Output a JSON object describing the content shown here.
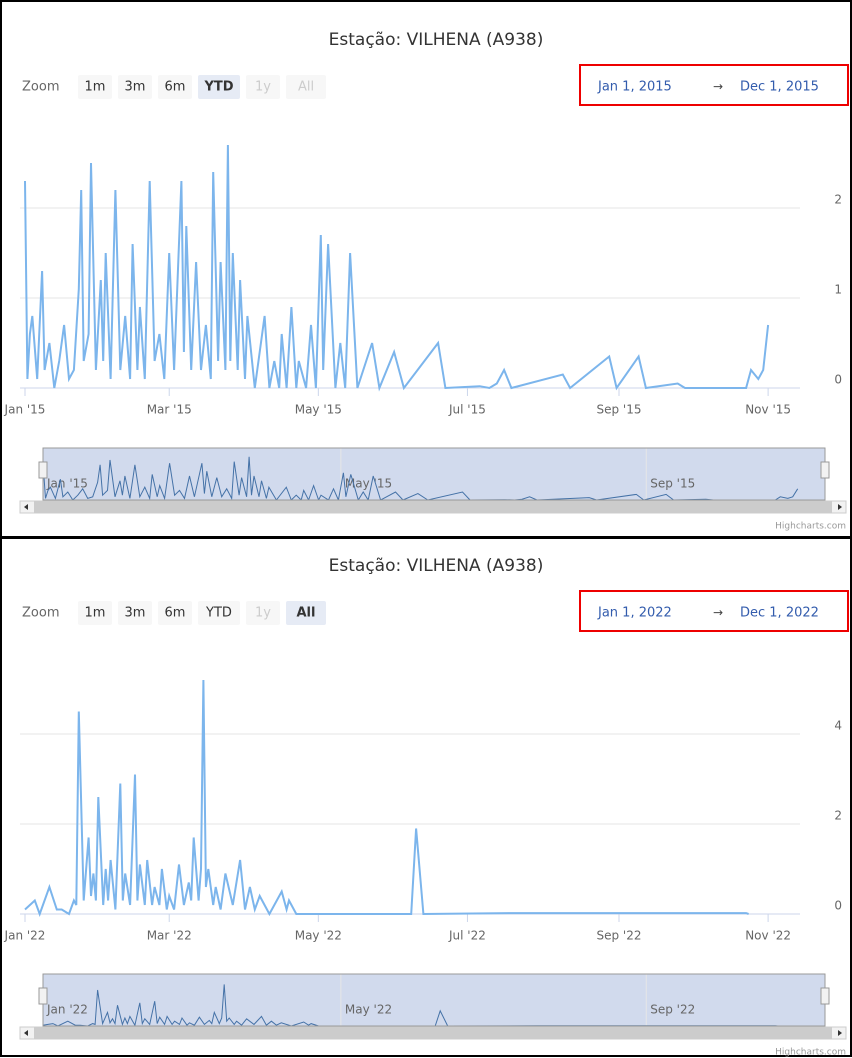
{
  "chart_data": [
    {
      "type": "line",
      "title": "Estação: VILHENA (A938)",
      "zoom_label": "Zoom",
      "buttons": [
        {
          "label": "1m",
          "state": "normal"
        },
        {
          "label": "3m",
          "state": "normal"
        },
        {
          "label": "6m",
          "state": "normal"
        },
        {
          "label": "YTD",
          "state": "selected"
        },
        {
          "label": "1y",
          "state": "disabled"
        },
        {
          "label": "All",
          "state": "disabled"
        }
      ],
      "range_from": "Jan 1, 2015",
      "range_separator": "→",
      "range_to": "Dec 1, 2015",
      "color": "#7cb5ec",
      "x": [
        0,
        1,
        2,
        3,
        5,
        7,
        8,
        10,
        12,
        14,
        16,
        18,
        20,
        22,
        23,
        24,
        26,
        27,
        29,
        31,
        32,
        33,
        35,
        37,
        39,
        41,
        43,
        44,
        46,
        47,
        49,
        51,
        53,
        55,
        57,
        59,
        61,
        64,
        65,
        66,
        68,
        70,
        72,
        74,
        76,
        77,
        79,
        80,
        82,
        83,
        84,
        85,
        87,
        88,
        90,
        91,
        94,
        98,
        100,
        102,
        104,
        105,
        107,
        109,
        111,
        112,
        115,
        117,
        119,
        121,
        122,
        124,
        127,
        129,
        131,
        133,
        136,
        142,
        145,
        151,
        155,
        169,
        172,
        186,
        190,
        193,
        196,
        199,
        220,
        223,
        239,
        242,
        251,
        254,
        267,
        270,
        295,
        297,
        300,
        302,
        304
      ],
      "values": [
        2.3,
        0.1,
        0.6,
        0.8,
        0.1,
        1.3,
        0.2,
        0.5,
        0,
        0.3,
        0.7,
        0.1,
        0.2,
        1.1,
        2.2,
        0.3,
        0.6,
        2.5,
        0.2,
        1.2,
        0.3,
        1.5,
        0.1,
        2.2,
        0.2,
        0.8,
        0.1,
        1.6,
        0.2,
        0.9,
        0.1,
        2.3,
        0.3,
        0.6,
        0.1,
        1.5,
        0.2,
        2.3,
        0.4,
        1.8,
        0.2,
        1.4,
        0.2,
        0.7,
        0.1,
        2.4,
        0.3,
        1.4,
        0.2,
        2.7,
        0.3,
        1.5,
        0.2,
        1.2,
        0.1,
        0.8,
        0,
        0.8,
        0,
        0.3,
        0,
        0.6,
        0,
        0.9,
        0,
        0.3,
        0,
        0.7,
        0,
        1.7,
        0.2,
        1.6,
        0,
        0.5,
        0,
        1.5,
        0,
        0.5,
        0,
        0.4,
        0,
        0.5,
        0,
        0.02,
        0,
        0.05,
        0.2,
        0,
        0.15,
        0,
        0.35,
        0,
        0.35,
        0,
        0.05,
        0,
        0,
        0.2,
        0.1,
        0.2,
        0.7
      ],
      "xlim": [
        0,
        315
      ],
      "xticks": [
        {
          "value": 0,
          "label": "Jan '15"
        },
        {
          "value": 59,
          "label": "Mar '15"
        },
        {
          "value": 120,
          "label": "May '15"
        },
        {
          "value": 181,
          "label": "Jul '15"
        },
        {
          "value": 243,
          "label": "Sep '15"
        },
        {
          "value": 304,
          "label": "Nov '15"
        }
      ],
      "ylim": [
        0,
        3
      ],
      "yticks": [
        0,
        1,
        2
      ],
      "grid": true,
      "navigator_ticks": [
        {
          "value": 0,
          "label": "Jan '15"
        },
        {
          "value": 120,
          "label": "May '15"
        },
        {
          "value": 243,
          "label": "Sep '15"
        }
      ],
      "credits": "Highcharts.com"
    },
    {
      "type": "line",
      "title": "Estação: VILHENA (A938)",
      "zoom_label": "Zoom",
      "buttons": [
        {
          "label": "1m",
          "state": "normal"
        },
        {
          "label": "3m",
          "state": "normal"
        },
        {
          "label": "6m",
          "state": "normal"
        },
        {
          "label": "YTD",
          "state": "normal"
        },
        {
          "label": "1y",
          "state": "disabled"
        },
        {
          "label": "All",
          "state": "selected"
        }
      ],
      "range_from": "Jan 1, 2022",
      "range_separator": "→",
      "range_to": "Dec 1, 2022",
      "color": "#7cb5ec",
      "x": [
        0,
        2,
        4,
        6,
        10,
        13,
        15,
        18,
        20,
        21,
        22,
        24,
        26,
        27,
        28,
        29,
        30,
        32,
        33,
        34,
        35,
        37,
        39,
        40,
        41,
        43,
        45,
        46,
        47,
        49,
        50,
        52,
        53,
        55,
        56,
        58,
        59,
        61,
        63,
        65,
        67,
        68,
        69,
        71,
        72,
        73,
        74,
        75,
        77,
        78,
        80,
        82,
        85,
        88,
        90,
        92,
        94,
        96,
        100,
        105,
        107,
        108,
        111,
        120,
        158,
        160,
        163,
        200,
        250,
        295,
        296
      ],
      "values": [
        0.1,
        0.2,
        0.3,
        0,
        0.6,
        0.1,
        0.1,
        0,
        0.3,
        0.2,
        4.5,
        0.3,
        1.7,
        0.4,
        0.9,
        0.3,
        2.6,
        0.2,
        1.0,
        0.3,
        1.2,
        0.1,
        2.9,
        0.3,
        0.9,
        0.2,
        3.1,
        0.3,
        1.1,
        0.2,
        1.2,
        0.2,
        0.6,
        0.2,
        1.0,
        0.1,
        0.4,
        0.1,
        1.1,
        0.2,
        0.7,
        0.3,
        1.7,
        0.3,
        1.0,
        5.2,
        0.6,
        1.0,
        0.2,
        0.6,
        0.1,
        0.9,
        0.2,
        1.2,
        0.1,
        0.6,
        0.1,
        0.4,
        0,
        0.5,
        0.1,
        0.3,
        0,
        0,
        0,
        1.9,
        0,
        0.02,
        0.02,
        0.02,
        0
      ],
      "xlim": [
        0,
        315
      ],
      "xticks": [
        {
          "value": 0,
          "label": "Jan '22"
        },
        {
          "value": 59,
          "label": "Mar '22"
        },
        {
          "value": 120,
          "label": "May '22"
        },
        {
          "value": 181,
          "label": "Jul '22"
        },
        {
          "value": 243,
          "label": "Sep '22"
        },
        {
          "value": 304,
          "label": "Nov '22"
        }
      ],
      "ylim": [
        0,
        6
      ],
      "yticks": [
        0,
        2,
        4
      ],
      "grid": true,
      "navigator_ticks": [
        {
          "value": 0,
          "label": "Jan '22"
        },
        {
          "value": 120,
          "label": "May '22"
        },
        {
          "value": 243,
          "label": "Sep '22"
        }
      ],
      "credits": "Highcharts.com"
    }
  ]
}
